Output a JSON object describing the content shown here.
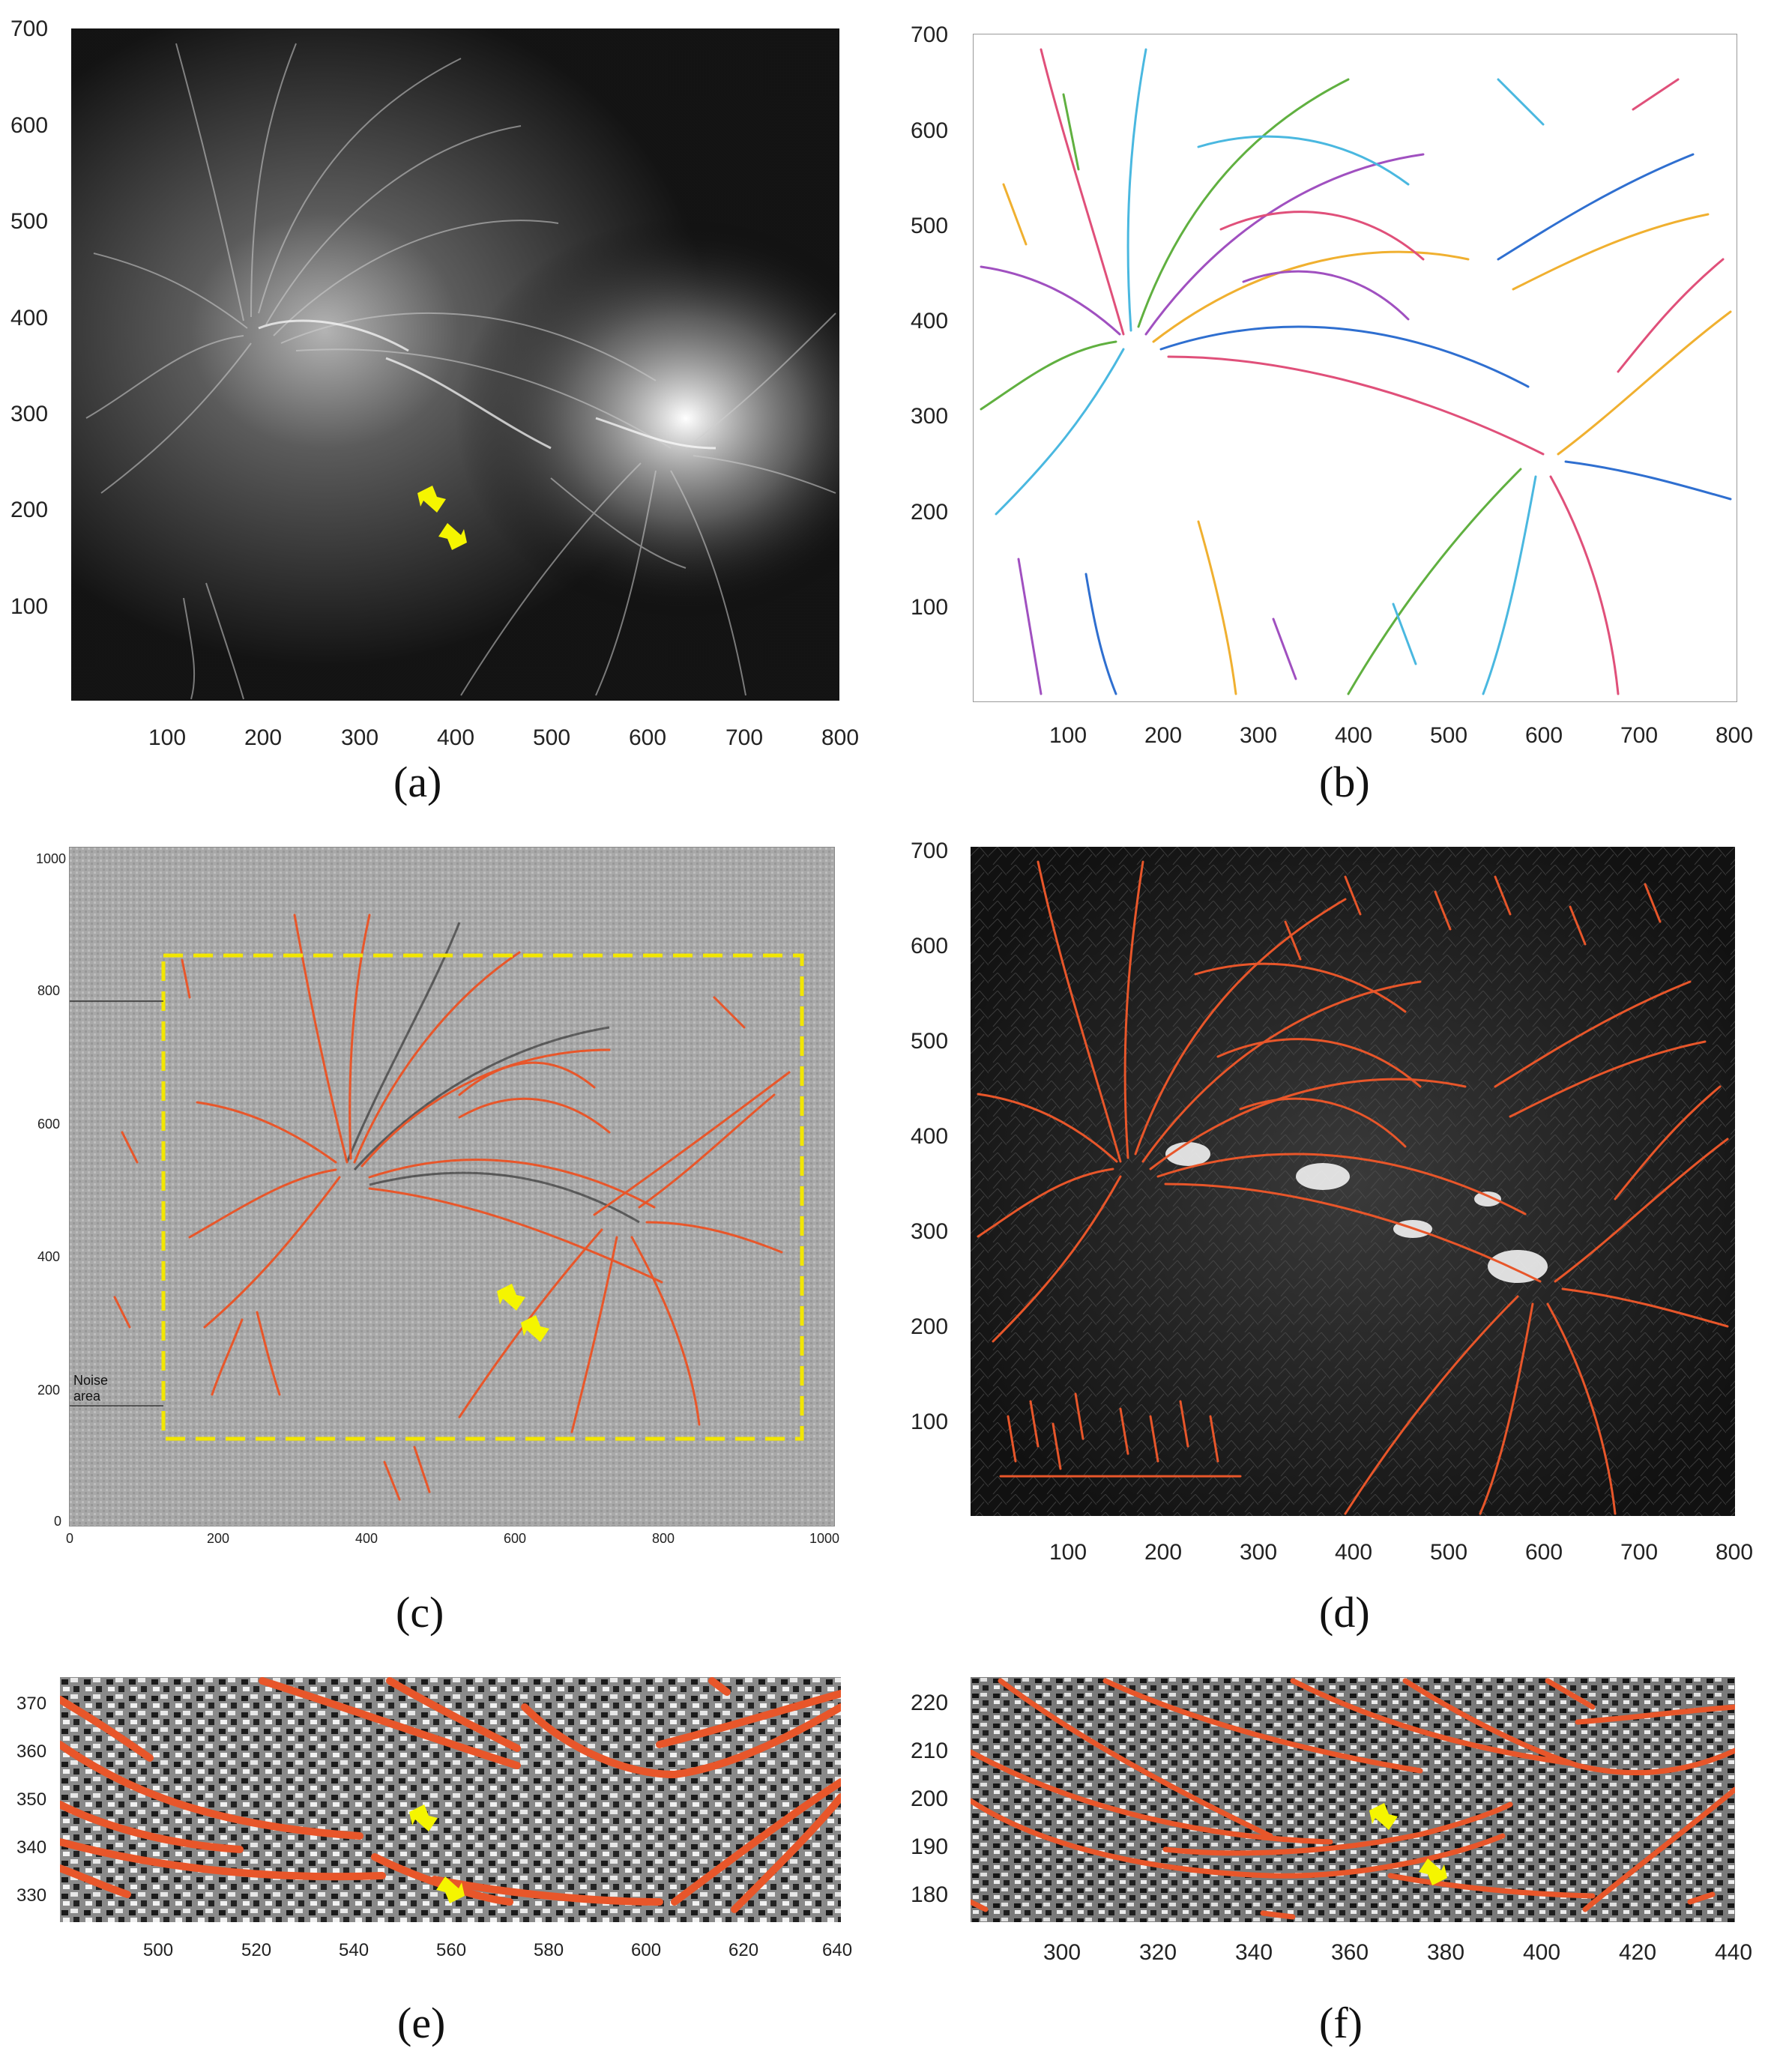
{
  "colors": {
    "accent_orange": "#e8562a",
    "arrow_yellow": "#f5f500",
    "box_yellow": "#f2e600",
    "line_palette": [
      "#4ab8e0",
      "#e0507a",
      "#f0b030",
      "#a050c0",
      "#60b040",
      "#2f6fd0",
      "#d05050"
    ]
  },
  "panels": {
    "a": {
      "caption": "(a)",
      "x_ticks": [
        "100",
        "200",
        "300",
        "400",
        "500",
        "600",
        "700",
        "800"
      ],
      "y_ticks": [
        "700",
        "600",
        "500",
        "400",
        "300",
        "200",
        "100"
      ],
      "icons": [
        "arrow-icon",
        "arrow-icon"
      ]
    },
    "b": {
      "caption": "(b)",
      "x_ticks": [
        "100",
        "200",
        "300",
        "400",
        "500",
        "600",
        "700",
        "800"
      ],
      "y_ticks": [
        "700",
        "600",
        "500",
        "400",
        "300",
        "200",
        "100"
      ]
    },
    "c": {
      "caption": "(c)",
      "x_ticks": [
        "0",
        "200",
        "400",
        "600",
        "800",
        "1000"
      ],
      "y_ticks": [
        "1000",
        "800",
        "600",
        "400",
        "200",
        "0"
      ],
      "noise_label": "Noise area",
      "icons": [
        "arrow-icon",
        "arrow-icon"
      ]
    },
    "d": {
      "caption": "(d)",
      "x_ticks": [
        "100",
        "200",
        "300",
        "400",
        "500",
        "600",
        "700",
        "800"
      ],
      "y_ticks": [
        "700",
        "600",
        "500",
        "400",
        "300",
        "200",
        "100"
      ]
    },
    "e": {
      "caption": "(e)",
      "x_ticks": [
        "500",
        "520",
        "540",
        "560",
        "580",
        "600",
        "620",
        "640"
      ],
      "y_ticks": [
        "370",
        "360",
        "350",
        "340",
        "330"
      ],
      "icons": [
        "arrow-icon",
        "arrow-icon"
      ]
    },
    "f": {
      "caption": "(f)",
      "x_ticks": [
        "300",
        "320",
        "340",
        "360",
        "380",
        "400",
        "420",
        "440"
      ],
      "y_ticks": [
        "220",
        "210",
        "200",
        "190",
        "180"
      ],
      "icons": [
        "arrow-icon",
        "arrow-icon"
      ]
    }
  }
}
